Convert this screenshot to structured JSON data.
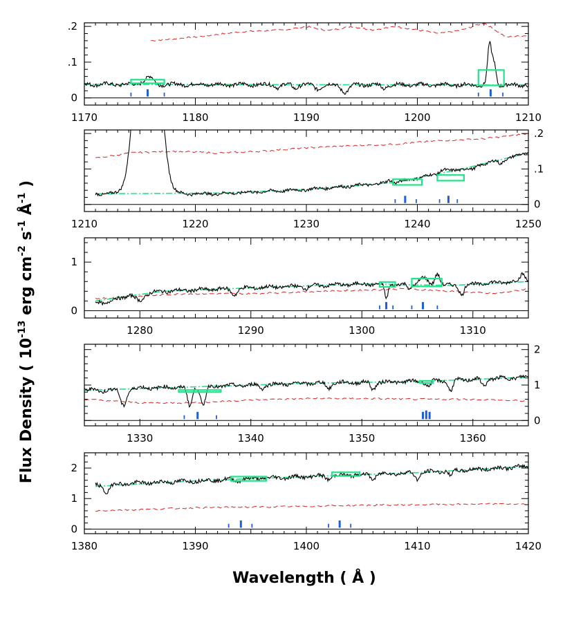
{
  "chart_data": {
    "type": "line",
    "xlabel": "Wavelength  ( Å )",
    "ylabel": "Flux Density  ( 10",
    "ylabel_exp": "-13",
    "ylabel_mid": " erg cm",
    "ylabel_mid_exp": "-2",
    "ylabel_s": " s",
    "ylabel_s_exp": "-1",
    "ylabel_A": " Å",
    "ylabel_A_exp": "-1",
    "ylabel_end": " )",
    "colors": {
      "spectrum": "#000000",
      "continuum": "#22e38a",
      "error": "#dd2222",
      "lines": "#1f5fd6",
      "box": "#22e38a"
    },
    "panels": [
      {
        "xlim": [
          1170,
          1210
        ],
        "ylim": [
          -0.02,
          0.21
        ],
        "xticks": [
          1170,
          1180,
          1190,
          1200,
          1210
        ],
        "xtick_labels": [
          "1170",
          "1180",
          "1190",
          "1200",
          "1210"
        ],
        "yticks": [
          0,
          0.1,
          0.2
        ],
        "ytick_labels": [
          "0",
          ".1",
          ".2"
        ],
        "yaxis_side": "left",
        "continuum": [
          [
            1170,
            0.038
          ],
          [
            1210,
            0.036
          ]
        ],
        "error_curve": [
          [
            1176,
            0.16
          ],
          [
            1180,
            0.17
          ],
          [
            1184,
            0.185
          ],
          [
            1188,
            0.19
          ],
          [
            1190,
            0.2
          ],
          [
            1192,
            0.188
          ],
          [
            1194,
            0.2
          ],
          [
            1196,
            0.19
          ],
          [
            1198,
            0.2
          ],
          [
            1200,
            0.19
          ],
          [
            1202,
            0.18
          ],
          [
            1204,
            0.19
          ],
          [
            1206,
            0.21
          ],
          [
            1208,
            0.17
          ],
          [
            1210,
            0.175
          ]
        ],
        "spectrum_base": [
          [
            1170,
            0.038
          ],
          [
            1210,
            0.036
          ]
        ],
        "spectrum_features": [
          [
            1175.5,
            0.012,
            0.5
          ],
          [
            1176,
            0.015,
            0.4
          ],
          [
            1187.5,
            -0.008,
            0.3
          ],
          [
            1189,
            -0.01,
            0.3
          ],
          [
            1191,
            -0.012,
            0.4
          ],
          [
            1193.5,
            -0.02,
            0.5
          ],
          [
            1197,
            -0.01,
            0.3
          ],
          [
            1206.5,
            0.11,
            0.25
          ],
          [
            1206.9,
            0.06,
            0.25
          ]
        ],
        "noise": 0.005,
        "boxes": [
          [
            1174.2,
            1177.2,
            0.041,
            0.051
          ],
          [
            1205.5,
            1207.8,
            0.035,
            0.078
          ]
        ],
        "ticks": [
          [
            1174.2,
            0.4
          ],
          [
            1175.7,
            0.75
          ],
          [
            1177.2,
            0.4
          ],
          [
            1205.5,
            0.4
          ],
          [
            1206.6,
            0.75
          ],
          [
            1207.7,
            0.4
          ]
        ]
      },
      {
        "xlim": [
          1210,
          1250
        ],
        "ylim": [
          -0.02,
          0.21
        ],
        "xticks": [
          1210,
          1220,
          1230,
          1240,
          1250
        ],
        "xtick_labels": [
          "1210",
          "1220",
          "1230",
          "1240",
          "1250"
        ],
        "yticks": [
          0,
          0.1,
          0.2
        ],
        "ytick_labels": [
          "0",
          ".1",
          ".2"
        ],
        "yaxis_side": "right",
        "continuum": [
          [
            1211,
            0.03
          ],
          [
            1222,
            0.032
          ],
          [
            1230,
            0.042
          ],
          [
            1238,
            0.062
          ],
          [
            1244,
            0.1
          ],
          [
            1250,
            0.145
          ]
        ],
        "error_curve": [
          [
            1211,
            0.13
          ],
          [
            1214,
            0.145
          ],
          [
            1218,
            0.15
          ],
          [
            1222,
            0.145
          ],
          [
            1226,
            0.15
          ],
          [
            1230,
            0.16
          ],
          [
            1234,
            0.165
          ],
          [
            1238,
            0.17
          ],
          [
            1240,
            0.175
          ],
          [
            1242,
            0.18
          ],
          [
            1246,
            0.185
          ],
          [
            1250,
            0.2
          ]
        ],
        "spectrum_base": [
          [
            1211,
            0.03
          ],
          [
            1222,
            0.03
          ],
          [
            1230,
            0.042
          ],
          [
            1238,
            0.062
          ],
          [
            1244,
            0.1
          ],
          [
            1250,
            0.145
          ]
        ],
        "spectrum_features": [
          [
            1215.7,
            0.9,
            1.2
          ],
          [
            1237.5,
            0.008,
            0.3
          ],
          [
            1242.3,
            0.01,
            0.4
          ],
          [
            1245,
            -0.01,
            0.4
          ],
          [
            1247.5,
            -0.012,
            0.3
          ]
        ],
        "noise": 0.004,
        "boxes": [
          [
            1237.8,
            1240.4,
            0.055,
            0.071
          ],
          [
            1241.8,
            1244.2,
            0.067,
            0.083
          ]
        ],
        "ticks": [
          [
            1238,
            0.4
          ],
          [
            1238.9,
            0.75
          ],
          [
            1239.9,
            0.4
          ],
          [
            1242,
            0.4
          ],
          [
            1242.8,
            0.75
          ],
          [
            1243.6,
            0.4
          ]
        ]
      },
      {
        "xlim": [
          1275,
          1315
        ],
        "ylim": [
          -0.15,
          1.5
        ],
        "xticks": [
          1280,
          1290,
          1300,
          1310
        ],
        "xtick_labels": [
          "1280",
          "1290",
          "1300",
          "1310"
        ],
        "yticks": [
          0,
          1
        ],
        "ytick_labels": [
          "0",
          "1"
        ],
        "yaxis_side": "left",
        "continuum": [
          [
            1276,
            0.2
          ],
          [
            1282,
            0.4
          ],
          [
            1290,
            0.47
          ],
          [
            1300,
            0.55
          ],
          [
            1308,
            0.52
          ],
          [
            1315,
            0.6
          ]
        ],
        "error_curve": [
          [
            1276,
            0.25
          ],
          [
            1280,
            0.3
          ],
          [
            1284,
            0.35
          ],
          [
            1290,
            0.35
          ],
          [
            1296,
            0.4
          ],
          [
            1300,
            0.42
          ],
          [
            1304,
            0.45
          ],
          [
            1308,
            0.4
          ],
          [
            1312,
            0.35
          ],
          [
            1315,
            0.45
          ]
        ],
        "spectrum_base": [
          [
            1276,
            0.2
          ],
          [
            1282,
            0.4
          ],
          [
            1290,
            0.47
          ],
          [
            1300,
            0.55
          ],
          [
            1308,
            0.52
          ],
          [
            1315,
            0.62
          ]
        ],
        "spectrum_features": [
          [
            1277,
            -0.1,
            0.5
          ],
          [
            1280,
            -0.12,
            0.5
          ],
          [
            1288.5,
            -0.12,
            0.4
          ],
          [
            1295,
            -0.05,
            0.3
          ],
          [
            1302.2,
            -0.3,
            0.2
          ],
          [
            1304.3,
            -0.1,
            0.2
          ],
          [
            1305.5,
            0.15,
            0.5
          ],
          [
            1306.8,
            0.25,
            0.3
          ],
          [
            1309,
            -0.2,
            0.3
          ],
          [
            1314.5,
            0.15,
            0.3
          ]
        ],
        "noise": 0.035,
        "boxes": [
          [
            1301.6,
            1303,
            0.49,
            0.59
          ],
          [
            1304.5,
            1307.2,
            0.5,
            0.66
          ]
        ],
        "ticks": [
          [
            1301.6,
            0.4
          ],
          [
            1302.2,
            0.75
          ],
          [
            1302.8,
            0.4
          ],
          [
            1304.5,
            0.4
          ],
          [
            1305.5,
            0.75
          ],
          [
            1306.8,
            0.4
          ]
        ]
      },
      {
        "xlim": [
          1325,
          1365
        ],
        "ylim": [
          -0.15,
          2.15
        ],
        "xticks": [
          1330,
          1340,
          1350,
          1360
        ],
        "xtick_labels": [
          "1330",
          "1340",
          "1350",
          "1360"
        ],
        "yticks": [
          0,
          1,
          2
        ],
        "ytick_labels": [
          "0",
          "1",
          "2"
        ],
        "yaxis_side": "right",
        "continuum": [
          [
            1325,
            0.85
          ],
          [
            1335,
            0.95
          ],
          [
            1345,
            1.05
          ],
          [
            1355,
            1.1
          ],
          [
            1365,
            1.22
          ]
        ],
        "error_curve": [
          [
            1325,
            0.6
          ],
          [
            1330,
            0.5
          ],
          [
            1335,
            0.5
          ],
          [
            1340,
            0.58
          ],
          [
            1345,
            0.62
          ],
          [
            1350,
            0.62
          ],
          [
            1355,
            0.6
          ],
          [
            1360,
            0.6
          ],
          [
            1365,
            0.55
          ]
        ],
        "spectrum_base": [
          [
            1325,
            0.88
          ],
          [
            1335,
            0.95
          ],
          [
            1345,
            1.05
          ],
          [
            1355,
            1.1
          ],
          [
            1365,
            1.22
          ]
        ],
        "spectrum_features": [
          [
            1326.5,
            -0.1,
            0.4
          ],
          [
            1328.5,
            -0.5,
            0.4
          ],
          [
            1334.5,
            -0.55,
            0.3
          ],
          [
            1335.7,
            -0.55,
            0.3
          ],
          [
            1341,
            -0.1,
            0.3
          ],
          [
            1347,
            -0.15,
            0.3
          ],
          [
            1351,
            -0.2,
            0.3
          ],
          [
            1356,
            -0.15,
            0.3
          ],
          [
            1358,
            -0.3,
            0.3
          ],
          [
            1361,
            -0.2,
            0.3
          ]
        ],
        "noise": 0.05,
        "boxes": [
          [
            1333.5,
            1337.3,
            0.82,
            0.86
          ],
          [
            1355.2,
            1356.4,
            1.06,
            1.12
          ]
        ],
        "ticks": [
          [
            1334,
            0.4
          ],
          [
            1335.2,
            0.75
          ],
          [
            1336.9,
            0.4
          ],
          [
            1355.5,
            0.75
          ],
          [
            1355.8,
            0.9
          ],
          [
            1356.1,
            0.75
          ]
        ]
      },
      {
        "xlim": [
          1380,
          1420
        ],
        "ylim": [
          -0.15,
          2.5
        ],
        "xticks": [
          1380,
          1390,
          1400,
          1410,
          1420
        ],
        "xtick_labels": [
          "1380",
          "1390",
          "1400",
          "1410",
          "1420"
        ],
        "yticks": [
          0,
          1,
          2
        ],
        "ytick_labels": [
          "0",
          "1",
          "2"
        ],
        "yaxis_side": "left",
        "continuum": [
          [
            1381,
            1.4
          ],
          [
            1390,
            1.58
          ],
          [
            1400,
            1.72
          ],
          [
            1410,
            1.85
          ],
          [
            1420,
            2.05
          ]
        ],
        "error_curve": [
          [
            1381,
            0.6
          ],
          [
            1386,
            0.65
          ],
          [
            1390,
            0.7
          ],
          [
            1395,
            0.72
          ],
          [
            1400,
            0.75
          ],
          [
            1405,
            0.78
          ],
          [
            1410,
            0.8
          ],
          [
            1415,
            0.82
          ],
          [
            1420,
            0.82
          ]
        ],
        "spectrum_base": [
          [
            1381,
            1.45
          ],
          [
            1390,
            1.58
          ],
          [
            1400,
            1.72
          ],
          [
            1410,
            1.85
          ],
          [
            1420,
            2.05
          ]
        ],
        "spectrum_features": [
          [
            1382,
            -0.25,
            0.4
          ],
          [
            1393.8,
            -0.05,
            0.3
          ],
          [
            1402,
            -0.1,
            0.3
          ],
          [
            1406,
            -0.15,
            0.3
          ],
          [
            1410,
            -0.2,
            0.3
          ],
          [
            1413,
            -0.15,
            0.3
          ]
        ],
        "noise": 0.06,
        "boxes": [
          [
            1393.2,
            1396.4,
            1.58,
            1.72
          ],
          [
            1402.3,
            1404.8,
            1.74,
            1.86
          ]
        ],
        "ticks": [
          [
            1393,
            0.4
          ],
          [
            1394.1,
            0.75
          ],
          [
            1395.1,
            0.4
          ],
          [
            1402,
            0.4
          ],
          [
            1403,
            0.75
          ],
          [
            1404,
            0.4
          ]
        ]
      }
    ]
  }
}
